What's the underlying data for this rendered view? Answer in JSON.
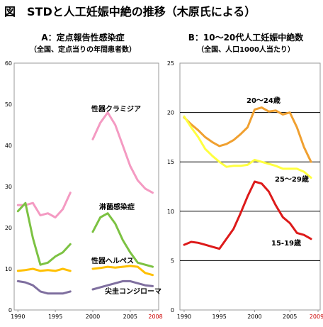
{
  "figure_title": "図　STDと人工妊娠中絶の推移（木原氏による）",
  "chart_data": [
    {
      "type": "line",
      "title": "A：定点報告性感染症",
      "subtitle": "（全国、定点当りの年間患者数）",
      "xlabel": "",
      "ylabel": "",
      "ylim": [
        0,
        60
      ],
      "yticks": [
        "0",
        "10",
        "20",
        "30",
        "40",
        "50",
        "60"
      ],
      "xticks": [
        "1990",
        "1995",
        "2000",
        "2005",
        "2008"
      ],
      "xtick_colors": [
        "#000000",
        "#000000",
        "#000000",
        "#000000",
        "#cc0000"
      ],
      "grid": false,
      "series": [
        {
          "name": "性器クラミジア",
          "color": "#f49ac2",
          "segments": [
            {
              "x": [
                1990,
                1991,
                1992,
                1993,
                1994,
                1995,
                1996,
                1997
              ],
              "y": [
                25.5,
                25.5,
                26.0,
                23.0,
                23.5,
                22.5,
                24.5,
                28.5
              ]
            },
            {
              "x": [
                2000,
                2001,
                2002,
                2003,
                2004,
                2005,
                2006,
                2007,
                2008
              ],
              "y": [
                41.5,
                45.5,
                48.0,
                45.0,
                40.0,
                35.0,
                31.5,
                29.5,
                28.5
              ]
            }
          ]
        },
        {
          "name": "淋菌感染症",
          "color": "#7cc242",
          "segments": [
            {
              "x": [
                1990,
                1991,
                1992,
                1993,
                1994,
                1995,
                1996,
                1997
              ],
              "y": [
                24.0,
                26.0,
                17.5,
                11.0,
                11.5,
                13.0,
                14.0,
                16.0
              ]
            },
            {
              "x": [
                2000,
                2001,
                2002,
                2003,
                2004,
                2005,
                2006,
                2007,
                2008
              ],
              "y": [
                19.0,
                22.5,
                23.5,
                21.0,
                17.0,
                14.0,
                11.5,
                11.0,
                10.5
              ]
            }
          ]
        },
        {
          "name": "性器ヘルペス",
          "color": "#ffc000",
          "segments": [
            {
              "x": [
                1990,
                1991,
                1992,
                1993,
                1994,
                1995,
                1996,
                1997
              ],
              "y": [
                9.5,
                9.7,
                10.0,
                9.5,
                9.7,
                9.5,
                10.0,
                9.5
              ]
            },
            {
              "x": [
                2000,
                2001,
                2002,
                2003,
                2004,
                2005,
                2006,
                2007,
                2008
              ],
              "y": [
                10.0,
                10.2,
                10.5,
                10.3,
                10.5,
                10.7,
                10.5,
                9.0,
                8.5
              ]
            }
          ]
        },
        {
          "name": "尖圭コンジローマ",
          "color": "#7f6f9f",
          "segments": [
            {
              "x": [
                1990,
                1991,
                1992,
                1993,
                1994,
                1995,
                1996,
                1997
              ],
              "y": [
                7.0,
                6.7,
                6.0,
                4.5,
                4.0,
                4.0,
                4.0,
                4.5
              ]
            },
            {
              "x": [
                2000,
                2001,
                2002,
                2003,
                2004,
                2005,
                2006,
                2007,
                2008
              ],
              "y": [
                5.0,
                5.5,
                6.0,
                6.5,
                7.0,
                7.0,
                6.5,
                6.0,
                5.8
              ]
            }
          ]
        }
      ]
    },
    {
      "type": "line",
      "title": "B：10～20代人工妊娠中絶数",
      "subtitle": "（全国、人口1000人当たり）",
      "xlabel": "",
      "ylabel": "",
      "ylim": [
        0,
        25
      ],
      "yticks": [
        "0",
        "5",
        "10",
        "15",
        "20",
        "25"
      ],
      "xticks": [
        "1990",
        "1995",
        "2000",
        "2005",
        "2009"
      ],
      "xtick_colors": [
        "#000000",
        "#000000",
        "#000000",
        "#000000",
        "#cc0000"
      ],
      "grid": true,
      "series": [
        {
          "name": "20～24歳",
          "color": "#f0a030",
          "segments": [
            {
              "x": [
                1990,
                1991,
                1992,
                1993,
                1994,
                1995,
                1996,
                1997,
                1998,
                1999,
                2000,
                2001,
                2002,
                2003,
                2004,
                2005,
                2006,
                2007,
                2008
              ],
              "y": [
                19.5,
                18.8,
                18.2,
                17.5,
                17.0,
                16.6,
                16.8,
                17.2,
                17.8,
                18.5,
                20.3,
                20.5,
                20.1,
                20.2,
                19.8,
                20.0,
                18.5,
                16.5,
                15.0
              ]
            }
          ]
        },
        {
          "name": "25～29歳",
          "color": "#ffff40",
          "segments": [
            {
              "x": [
                1990,
                1991,
                1992,
                1993,
                1994,
                1995,
                1996,
                1997,
                1998,
                1999,
                2000,
                2001,
                2002,
                2003,
                2004,
                2005,
                2006,
                2007,
                2008
              ],
              "y": [
                19.6,
                18.5,
                17.5,
                16.3,
                15.6,
                15.0,
                14.5,
                14.6,
                14.6,
                14.7,
                15.2,
                15.0,
                14.8,
                14.6,
                14.3,
                14.3,
                14.3,
                14.0,
                13.4
              ]
            }
          ]
        },
        {
          "name": "15-19歳",
          "color": "#dd1a1a",
          "segments": [
            {
              "x": [
                1990,
                1991,
                1992,
                1993,
                1994,
                1995,
                1996,
                1997,
                1998,
                1999,
                2000,
                2001,
                2002,
                2003,
                2004,
                2005,
                2006,
                2007,
                2008
              ],
              "y": [
                6.6,
                6.9,
                6.8,
                6.6,
                6.4,
                6.2,
                7.2,
                8.2,
                9.8,
                11.5,
                13.0,
                12.8,
                12.0,
                10.6,
                9.4,
                8.8,
                7.8,
                7.6,
                7.2
              ]
            }
          ]
        }
      ]
    }
  ]
}
